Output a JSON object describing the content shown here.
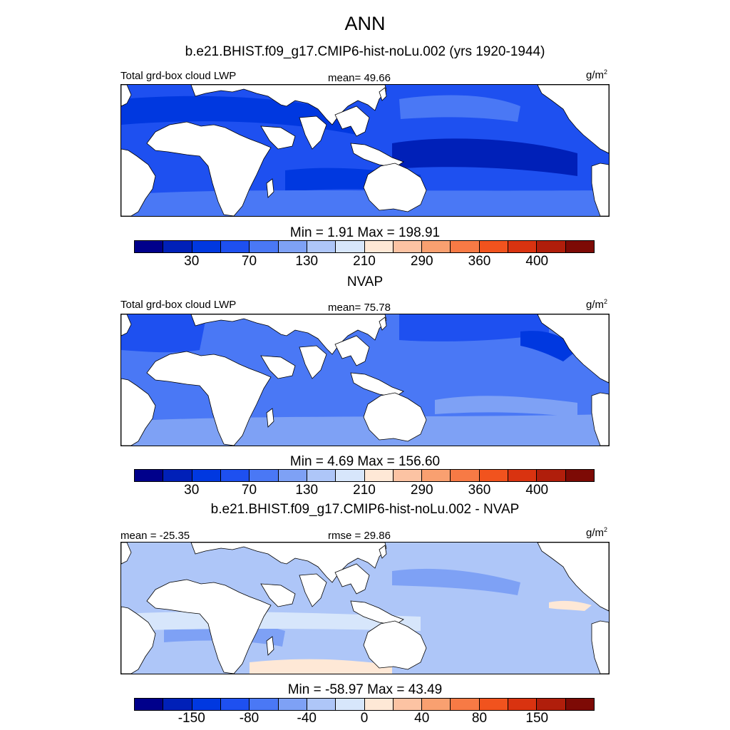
{
  "title": "ANN",
  "colormap": [
    "#00008b",
    "#0020b8",
    "#0038e0",
    "#1e50f0",
    "#4a78f5",
    "#7ea1f5",
    "#aec6f8",
    "#d7e6fb",
    "#fee8d6",
    "#fcc3a3",
    "#f9a070",
    "#f77a45",
    "#f1531e",
    "#d93310",
    "#b01e0b",
    "#7d0a05"
  ],
  "colors": {
    "land": "#ffffff",
    "coast": "#000000"
  },
  "panels": [
    {
      "subtitle": "b.e21.BHIST.f09_g17.CMIP6-hist-noLu.002 (yrs 1920-1944)",
      "left_label": "Total grd-box cloud LWP",
      "center_label": "mean=  49.66",
      "units": "g/m",
      "units_sup": "2",
      "minmax": "Min =   1.91 Max = 198.91",
      "ticks": [
        "30",
        "70",
        "130",
        "210",
        "290",
        "360",
        "400"
      ],
      "ocean_fill": "#1e50f0",
      "ocean_levels": [
        {
          "fill": "#0038e0",
          "name": "band-strong"
        },
        {
          "fill": "#4a78f5",
          "name": "band-weak"
        },
        {
          "fill": "#0020b8",
          "name": "band-core"
        }
      ]
    },
    {
      "subtitle": "NVAP",
      "left_label": "Total grd-box cloud LWP",
      "center_label": "mean=  75.78",
      "units": "g/m",
      "units_sup": "2",
      "minmax": "Min =   4.69 Max = 156.60",
      "ticks": [
        "30",
        "70",
        "130",
        "210",
        "290",
        "360",
        "400"
      ],
      "ocean_fill": "#4a78f5",
      "ocean_levels": [
        {
          "fill": "#1e50f0",
          "name": "band-strong"
        },
        {
          "fill": "#7ea1f5",
          "name": "band-weak"
        },
        {
          "fill": "#0038e0",
          "name": "band-core"
        }
      ]
    },
    {
      "subtitle": "b.e21.BHIST.f09_g17.CMIP6-hist-noLu.002 - NVAP",
      "left_label": "mean = -25.35",
      "center_label": "rmse =  29.86",
      "units": "g/m",
      "units_sup": "2",
      "minmax": "Min = -58.97 Max =  43.49",
      "ticks": [
        "-150",
        "-80",
        "-40",
        "0",
        "40",
        "80",
        "150"
      ],
      "ocean_fill": "#aec6f8",
      "ocean_levels": [
        {
          "fill": "#7ea1f5",
          "name": "band-strong"
        },
        {
          "fill": "#d7e6fb",
          "name": "band-weak"
        },
        {
          "fill": "#fee8d6",
          "name": "band-positive"
        }
      ]
    }
  ]
}
